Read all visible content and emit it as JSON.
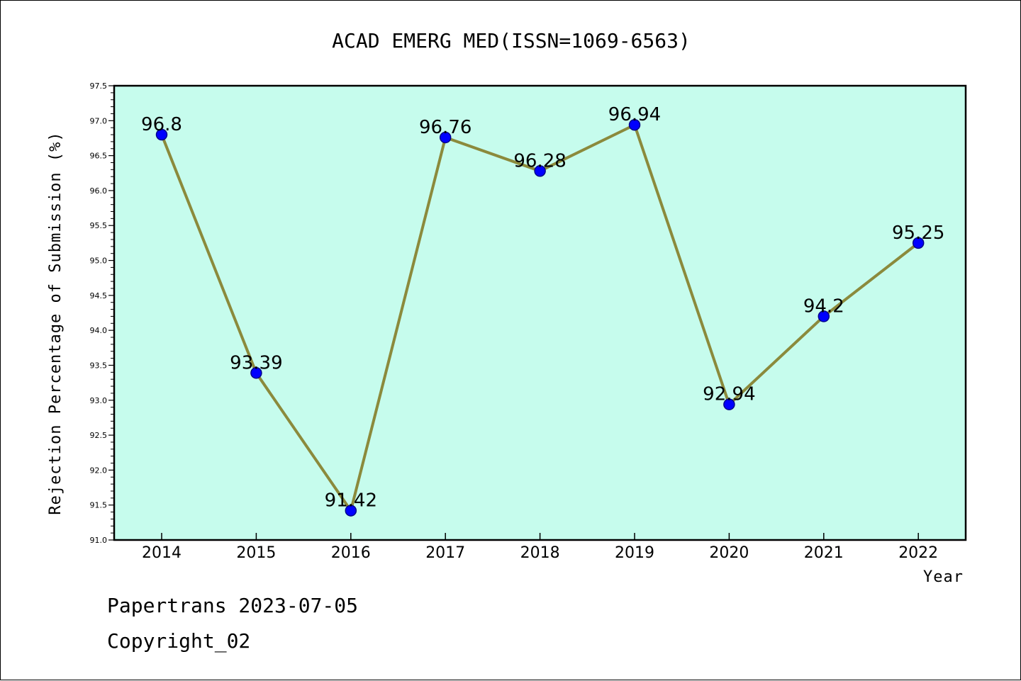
{
  "chart_data": {
    "type": "line",
    "title": "ACAD EMERG MED(ISSN=1069-6563)",
    "xlabel": "Year",
    "ylabel": "Rejection Percentage of Submission (%)",
    "categories": [
      "2014",
      "2015",
      "2016",
      "2017",
      "2018",
      "2019",
      "2020",
      "2021",
      "2022"
    ],
    "series": [
      {
        "values": [
          96.8,
          93.39,
          91.42,
          96.76,
          96.28,
          96.94,
          92.94,
          94.2,
          95.25
        ],
        "labels": [
          "96.8",
          "93.39",
          "91.42",
          "96.76",
          "96.28",
          "96.94",
          "92.94",
          "94.2",
          "95.25"
        ]
      }
    ],
    "ylim": [
      91.0,
      97.5
    ],
    "yticks": [
      "91.0",
      "91.5",
      "92.0",
      "92.5",
      "93.0",
      "93.5",
      "94.0",
      "94.5",
      "95.0",
      "95.5",
      "96.0",
      "96.5",
      "97.0",
      "97.5"
    ],
    "grid": false,
    "colors": {
      "plot_background": "#c6fced",
      "line": "#8b8a3c",
      "marker_fill": "#0000ff",
      "marker_edge": "#00008b"
    }
  },
  "footer": {
    "line1": "Papertrans 2023-07-05",
    "line2": "Copyright_02"
  }
}
